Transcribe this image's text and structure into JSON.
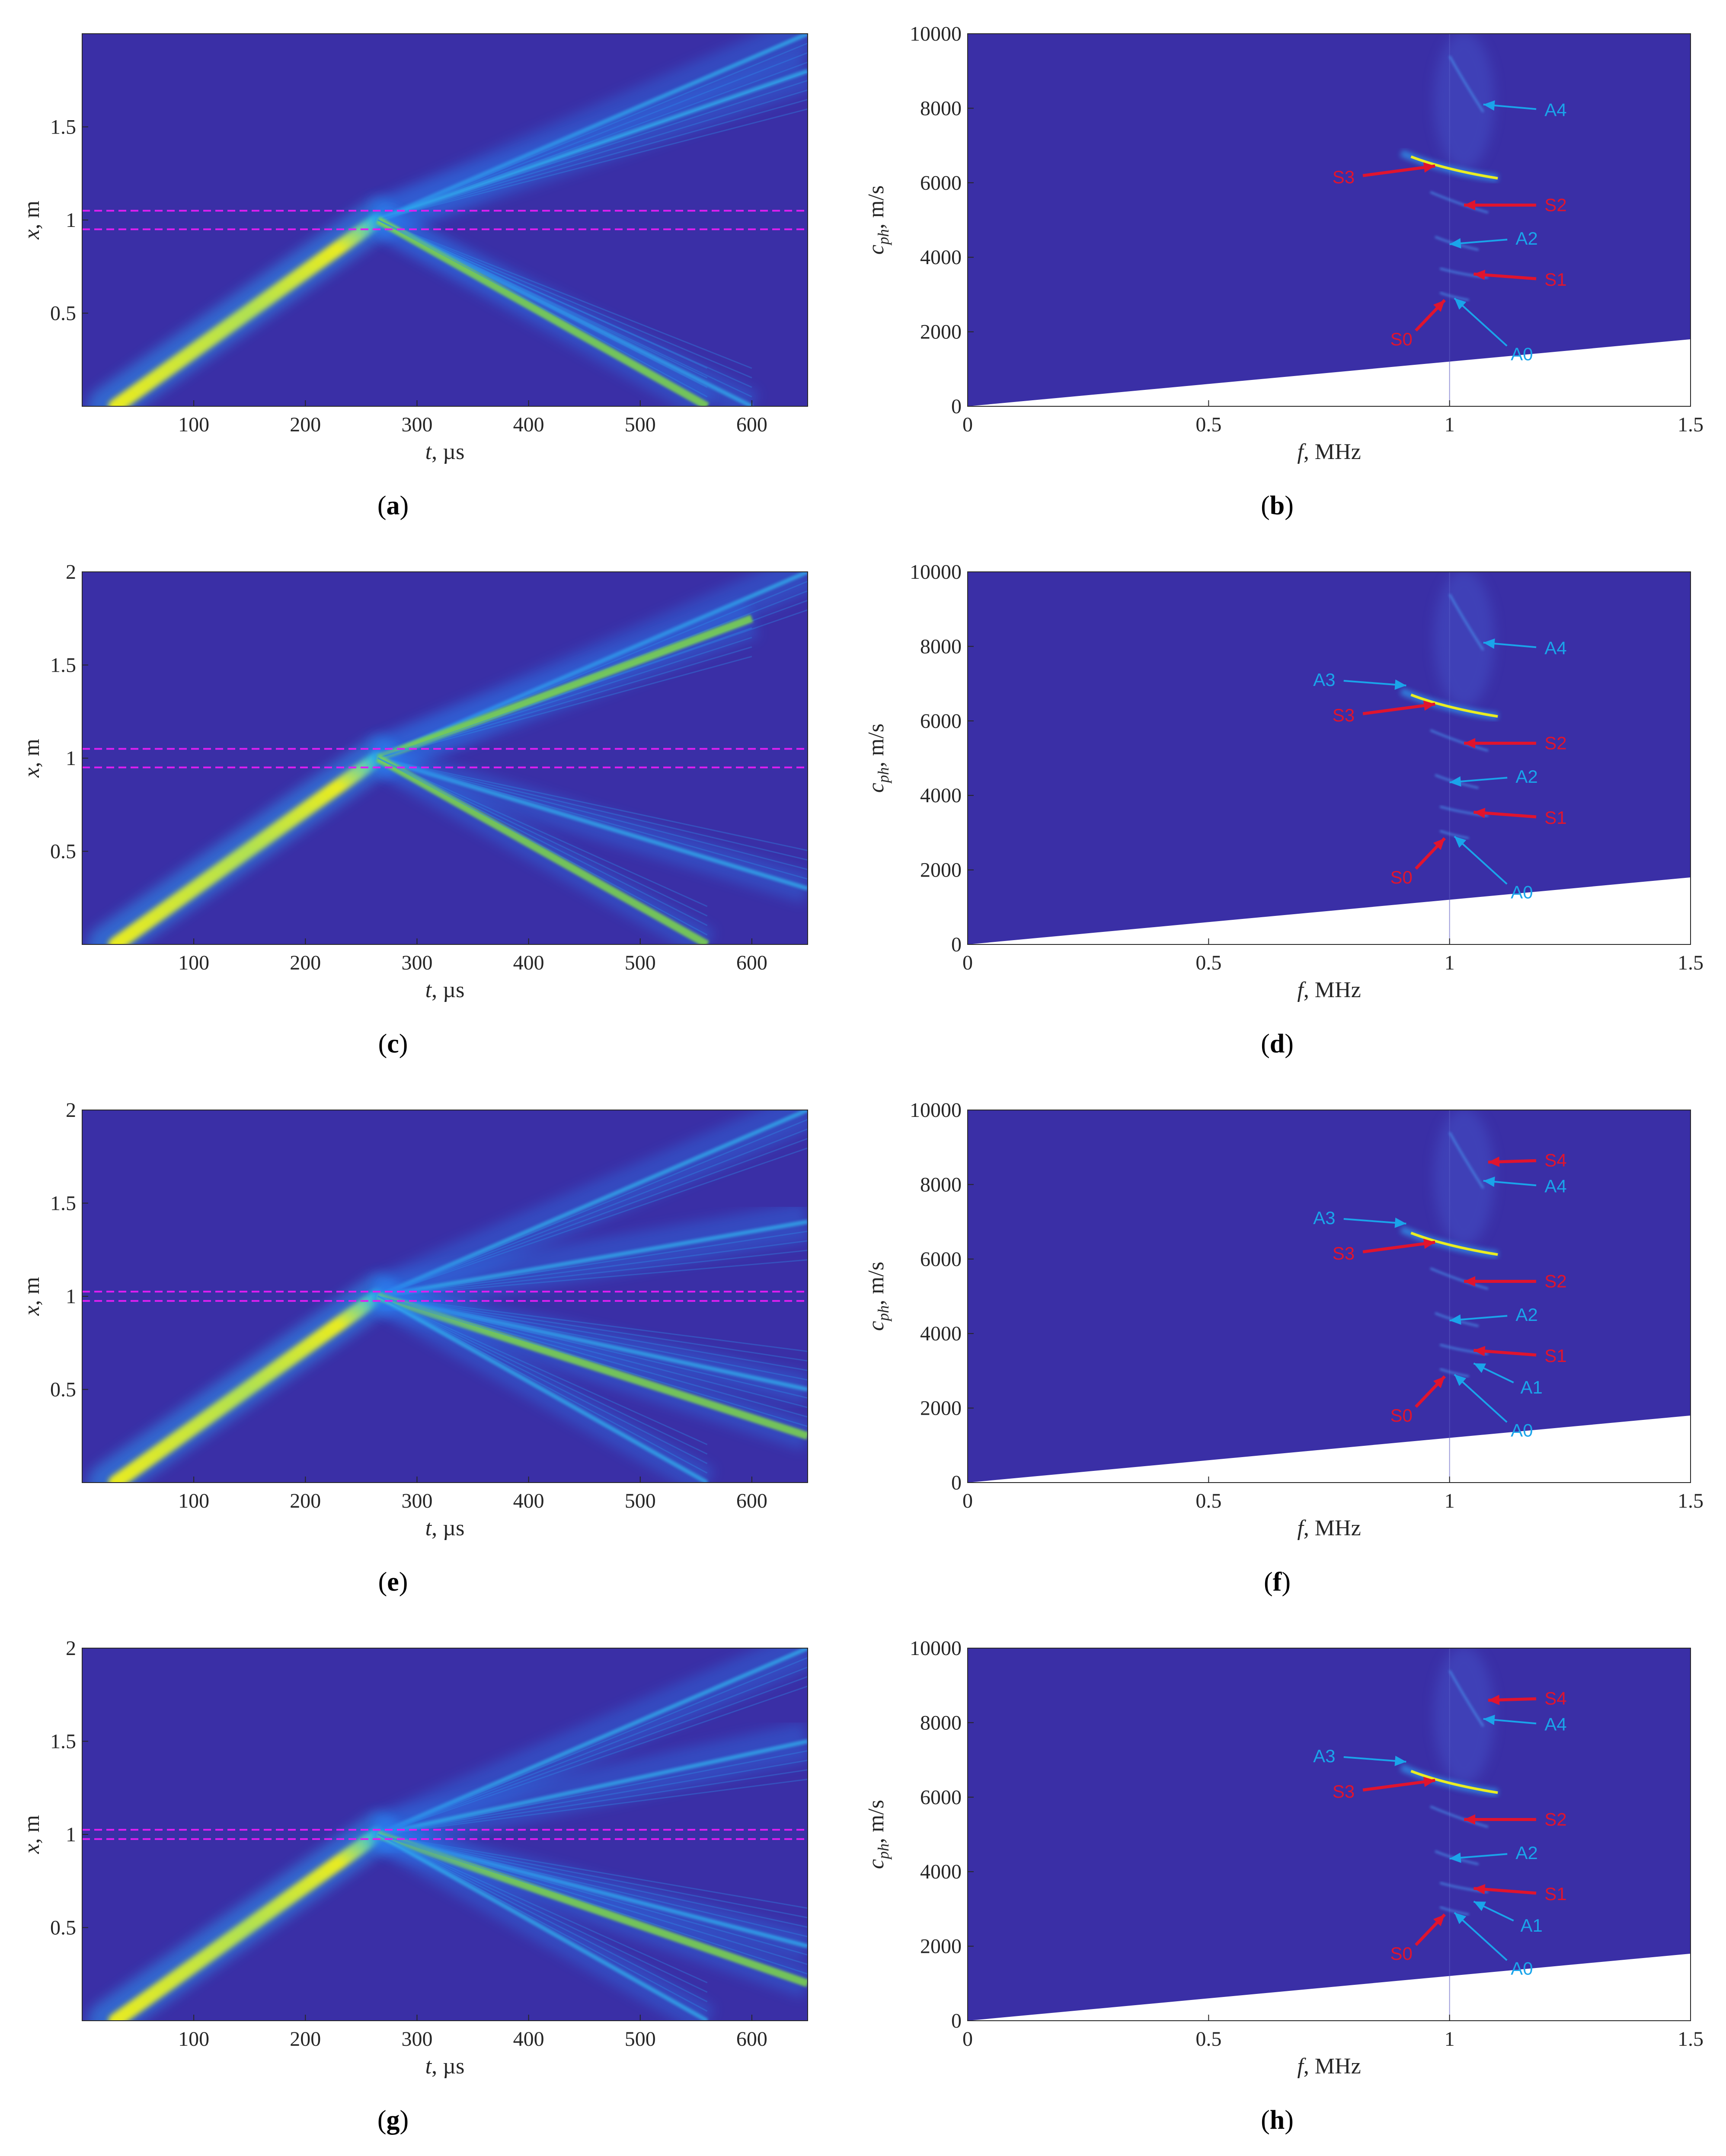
{
  "colors": {
    "background": "#3a2fa6",
    "yellow": "#f3f318",
    "cyan": "#26b6ff",
    "magenta": "#e01ef2",
    "red": "#e0142e",
    "blue_label": "#1aa4ea"
  },
  "chart_data": [
    {
      "id": "a",
      "type": "heatmap",
      "caption_letter": "a",
      "xlabel_var": "t",
      "xlabel_unit": ", µs",
      "ylabel_var": "x",
      "ylabel_unit": ", m",
      "xlim": [
        0,
        650
      ],
      "ylim": [
        0,
        2
      ],
      "xticks": [
        "100",
        "200",
        "300",
        "400",
        "500",
        "600"
      ],
      "xtick_values": [
        100,
        200,
        300,
        400,
        500,
        600
      ],
      "yticks": [
        "0.5",
        "1",
        "1.5"
      ],
      "ytick_values": [
        0.5,
        1,
        1.5
      ],
      "defect_lines": [
        0.95,
        1.05
      ],
      "incident_ray": {
        "t_start": 30,
        "x_start": 0,
        "t_end": 265,
        "x_end": 1.0
      },
      "rays": [
        {
          "t_end": 650,
          "x_end": 2.0,
          "type": "transmitted"
        },
        {
          "t_end": 650,
          "x_end": 1.8,
          "type": "transmitted"
        },
        {
          "t_end": 600,
          "x_end": 0,
          "type": "reflected"
        },
        {
          "t_end": 560,
          "x_end": 0,
          "type": "reflected_strong"
        }
      ]
    },
    {
      "id": "b",
      "type": "heatmap",
      "caption_letter": "b",
      "xlabel_var": "f",
      "xlabel_unit": ", MHz",
      "ylabel_var": "c",
      "ylabel_sub": "ph",
      "ylabel_unit": ", m/s",
      "xlim": [
        0,
        1.5
      ],
      "ylim": [
        0,
        10000
      ],
      "xticks": [
        "0",
        "0.5",
        "1",
        "1.5"
      ],
      "xtick_values": [
        0,
        0.5,
        1,
        1.5
      ],
      "yticks": [
        "0",
        "2000",
        "4000",
        "6000",
        "8000",
        "10000"
      ],
      "ytick_values": [
        0,
        2000,
        4000,
        6000,
        8000,
        10000
      ],
      "cutoff_at_max_f": 1800,
      "labels": [
        {
          "text": "A4",
          "color": "blue",
          "lx": 1.22,
          "ly": 7950,
          "ax": 1.07,
          "ay": 8100
        },
        {
          "text": "S3",
          "color": "red",
          "lx": 0.78,
          "ly": 6150,
          "ax": 0.97,
          "ay": 6450
        },
        {
          "text": "S2",
          "color": "red",
          "lx": 1.22,
          "ly": 5400,
          "ax": 1.03,
          "ay": 5400
        },
        {
          "text": "A2",
          "color": "blue",
          "lx": 1.16,
          "ly": 4500,
          "ax": 1.0,
          "ay": 4350
        },
        {
          "text": "S1",
          "color": "red",
          "lx": 1.22,
          "ly": 3400,
          "ax": 1.05,
          "ay": 3550
        },
        {
          "text": "S0",
          "color": "red",
          "lx": 0.9,
          "ly": 1800,
          "ax": 0.99,
          "ay": 2850
        },
        {
          "text": "A0",
          "color": "blue",
          "lx": 1.15,
          "ly": 1400,
          "ax": 1.01,
          "ay": 2900
        }
      ]
    },
    {
      "id": "c",
      "type": "heatmap",
      "caption_letter": "c",
      "xlabel_var": "t",
      "xlabel_unit": ", µs",
      "ylabel_var": "x",
      "ylabel_unit": ", m",
      "xlim": [
        0,
        650
      ],
      "ylim": [
        0,
        2
      ],
      "xticks": [
        "100",
        "200",
        "300",
        "400",
        "500",
        "600"
      ],
      "xtick_values": [
        100,
        200,
        300,
        400,
        500,
        600
      ],
      "yticks": [
        "0.5",
        "1",
        "1.5",
        "2"
      ],
      "ytick_values": [
        0.5,
        1,
        1.5,
        2
      ],
      "defect_lines": [
        0.95,
        1.05
      ],
      "incident_ray": {
        "t_start": 30,
        "x_start": 0,
        "t_end": 265,
        "x_end": 1.0
      },
      "rays": [
        {
          "t_end": 650,
          "x_end": 2.0,
          "type": "transmitted"
        },
        {
          "t_end": 600,
          "x_end": 1.75,
          "type": "transmitted_strong"
        },
        {
          "t_end": 650,
          "x_end": 0.3,
          "type": "reflected"
        },
        {
          "t_end": 560,
          "x_end": 0,
          "type": "reflected_strong"
        }
      ]
    },
    {
      "id": "d",
      "type": "heatmap",
      "caption_letter": "d",
      "xlabel_var": "f",
      "xlabel_unit": ", MHz",
      "ylabel_var": "c",
      "ylabel_sub": "ph",
      "ylabel_unit": ", m/s",
      "xlim": [
        0,
        1.5
      ],
      "ylim": [
        0,
        10000
      ],
      "xticks": [
        "0",
        "0.5",
        "1",
        "1.5"
      ],
      "xtick_values": [
        0,
        0.5,
        1,
        1.5
      ],
      "yticks": [
        "0",
        "2000",
        "4000",
        "6000",
        "8000",
        "10000"
      ],
      "ytick_values": [
        0,
        2000,
        4000,
        6000,
        8000,
        10000
      ],
      "cutoff_at_max_f": 1800,
      "labels": [
        {
          "text": "A4",
          "color": "blue",
          "lx": 1.22,
          "ly": 7950,
          "ax": 1.07,
          "ay": 8100
        },
        {
          "text": "A3",
          "color": "blue",
          "lx": 0.74,
          "ly": 7100,
          "ax": 0.91,
          "ay": 6950
        },
        {
          "text": "S3",
          "color": "red",
          "lx": 0.78,
          "ly": 6150,
          "ax": 0.97,
          "ay": 6450
        },
        {
          "text": "S2",
          "color": "red",
          "lx": 1.22,
          "ly": 5400,
          "ax": 1.03,
          "ay": 5400
        },
        {
          "text": "A2",
          "color": "blue",
          "lx": 1.16,
          "ly": 4500,
          "ax": 1.0,
          "ay": 4350
        },
        {
          "text": "S1",
          "color": "red",
          "lx": 1.22,
          "ly": 3400,
          "ax": 1.05,
          "ay": 3550
        },
        {
          "text": "S0",
          "color": "red",
          "lx": 0.9,
          "ly": 1800,
          "ax": 0.99,
          "ay": 2850
        },
        {
          "text": "A0",
          "color": "blue",
          "lx": 1.15,
          "ly": 1400,
          "ax": 1.01,
          "ay": 2900
        }
      ]
    },
    {
      "id": "e",
      "type": "heatmap",
      "caption_letter": "e",
      "xlabel_var": "t",
      "xlabel_unit": ", µs",
      "ylabel_var": "x",
      "ylabel_unit": ", m",
      "xlim": [
        0,
        650
      ],
      "ylim": [
        0,
        2
      ],
      "xticks": [
        "100",
        "200",
        "300",
        "400",
        "500",
        "600"
      ],
      "xtick_values": [
        100,
        200,
        300,
        400,
        500,
        600
      ],
      "yticks": [
        "0.5",
        "1",
        "1.5",
        "2"
      ],
      "ytick_values": [
        0.5,
        1,
        1.5,
        2
      ],
      "defect_lines": [
        0.975,
        1.025
      ],
      "incident_ray": {
        "t_start": 30,
        "x_start": 0,
        "t_end": 265,
        "x_end": 1.0
      },
      "rays": [
        {
          "t_end": 650,
          "x_end": 2.0,
          "type": "transmitted"
        },
        {
          "t_end": 650,
          "x_end": 1.4,
          "type": "transmitted"
        },
        {
          "t_end": 650,
          "x_end": 0.5,
          "type": "reflected"
        },
        {
          "t_end": 650,
          "x_end": 0.25,
          "type": "reflected_strong"
        },
        {
          "t_end": 560,
          "x_end": 0,
          "type": "reflected"
        }
      ]
    },
    {
      "id": "f",
      "type": "heatmap",
      "caption_letter": "f",
      "xlabel_var": "f",
      "xlabel_unit": ", MHz",
      "ylabel_var": "c",
      "ylabel_sub": "ph",
      "ylabel_unit": ", m/s",
      "xlim": [
        0,
        1.5
      ],
      "ylim": [
        0,
        10000
      ],
      "xticks": [
        "0",
        "0.5",
        "1",
        "1.5"
      ],
      "xtick_values": [
        0,
        0.5,
        1,
        1.5
      ],
      "yticks": [
        "0",
        "2000",
        "4000",
        "6000",
        "8000",
        "10000"
      ],
      "ytick_values": [
        0,
        2000,
        4000,
        6000,
        8000,
        10000
      ],
      "cutoff_at_max_f": 1800,
      "labels": [
        {
          "text": "S4",
          "color": "red",
          "lx": 1.22,
          "ly": 8650,
          "ax": 1.08,
          "ay": 8600
        },
        {
          "text": "A4",
          "color": "blue",
          "lx": 1.22,
          "ly": 7950,
          "ax": 1.07,
          "ay": 8100
        },
        {
          "text": "A3",
          "color": "blue",
          "lx": 0.74,
          "ly": 7100,
          "ax": 0.91,
          "ay": 6950
        },
        {
          "text": "S3",
          "color": "red",
          "lx": 0.78,
          "ly": 6150,
          "ax": 0.97,
          "ay": 6450
        },
        {
          "text": "S2",
          "color": "red",
          "lx": 1.22,
          "ly": 5400,
          "ax": 1.03,
          "ay": 5400
        },
        {
          "text": "A2",
          "color": "blue",
          "lx": 1.16,
          "ly": 4500,
          "ax": 1.0,
          "ay": 4350
        },
        {
          "text": "S1",
          "color": "red",
          "lx": 1.22,
          "ly": 3400,
          "ax": 1.05,
          "ay": 3550
        },
        {
          "text": "A1",
          "color": "blue",
          "lx": 1.17,
          "ly": 2550,
          "ax": 1.05,
          "ay": 3200
        },
        {
          "text": "S0",
          "color": "red",
          "lx": 0.9,
          "ly": 1800,
          "ax": 0.99,
          "ay": 2850
        },
        {
          "text": "A0",
          "color": "blue",
          "lx": 1.15,
          "ly": 1400,
          "ax": 1.01,
          "ay": 2900
        }
      ]
    },
    {
      "id": "g",
      "type": "heatmap",
      "caption_letter": "g",
      "xlabel_var": "t",
      "xlabel_unit": ", µs",
      "ylabel_var": "x",
      "ylabel_unit": ", m",
      "xlim": [
        0,
        650
      ],
      "ylim": [
        0,
        2
      ],
      "xticks": [
        "100",
        "200",
        "300",
        "400",
        "500",
        "600"
      ],
      "xtick_values": [
        100,
        200,
        300,
        400,
        500,
        600
      ],
      "yticks": [
        "0.5",
        "1",
        "1.5",
        "2"
      ],
      "ytick_values": [
        0.5,
        1,
        1.5,
        2
      ],
      "defect_lines": [
        0.975,
        1.025
      ],
      "incident_ray": {
        "t_start": 30,
        "x_start": 0,
        "t_end": 265,
        "x_end": 1.0
      },
      "rays": [
        {
          "t_end": 650,
          "x_end": 2.0,
          "type": "transmitted"
        },
        {
          "t_end": 650,
          "x_end": 1.5,
          "type": "transmitted"
        },
        {
          "t_end": 650,
          "x_end": 0.4,
          "type": "reflected"
        },
        {
          "t_end": 650,
          "x_end": 0.2,
          "type": "reflected_strong"
        },
        {
          "t_end": 560,
          "x_end": 0,
          "type": "reflected"
        }
      ]
    },
    {
      "id": "h",
      "type": "heatmap",
      "caption_letter": "h",
      "xlabel_var": "f",
      "xlabel_unit": ", MHz",
      "ylabel_var": "c",
      "ylabel_sub": "ph",
      "ylabel_unit": ", m/s",
      "xlim": [
        0,
        1.5
      ],
      "ylim": [
        0,
        10000
      ],
      "xticks": [
        "0",
        "0.5",
        "1",
        "1.5"
      ],
      "xtick_values": [
        0,
        0.5,
        1,
        1.5
      ],
      "yticks": [
        "0",
        "2000",
        "4000",
        "6000",
        "8000",
        "10000"
      ],
      "ytick_values": [
        0,
        2000,
        4000,
        6000,
        8000,
        10000
      ],
      "cutoff_at_max_f": 1800,
      "labels": [
        {
          "text": "S4",
          "color": "red",
          "lx": 1.22,
          "ly": 8650,
          "ax": 1.08,
          "ay": 8600
        },
        {
          "text": "A4",
          "color": "blue",
          "lx": 1.22,
          "ly": 7950,
          "ax": 1.07,
          "ay": 8100
        },
        {
          "text": "A3",
          "color": "blue",
          "lx": 0.74,
          "ly": 7100,
          "ax": 0.91,
          "ay": 6950
        },
        {
          "text": "S3",
          "color": "red",
          "lx": 0.78,
          "ly": 6150,
          "ax": 0.97,
          "ay": 6450
        },
        {
          "text": "S2",
          "color": "red",
          "lx": 1.22,
          "ly": 5400,
          "ax": 1.03,
          "ay": 5400
        },
        {
          "text": "A2",
          "color": "blue",
          "lx": 1.16,
          "ly": 4500,
          "ax": 1.0,
          "ay": 4350
        },
        {
          "text": "S1",
          "color": "red",
          "lx": 1.22,
          "ly": 3400,
          "ax": 1.05,
          "ay": 3550
        },
        {
          "text": "A1",
          "color": "blue",
          "lx": 1.17,
          "ly": 2550,
          "ax": 1.05,
          "ay": 3200
        },
        {
          "text": "S0",
          "color": "red",
          "lx": 0.9,
          "ly": 1800,
          "ax": 0.99,
          "ay": 2850
        },
        {
          "text": "A0",
          "color": "blue",
          "lx": 1.15,
          "ly": 1400,
          "ax": 1.01,
          "ay": 2900
        }
      ]
    }
  ]
}
